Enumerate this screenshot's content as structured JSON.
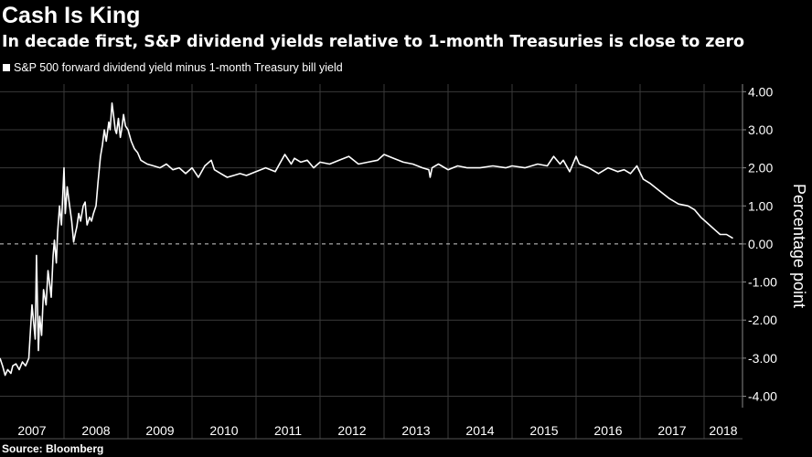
{
  "header": {
    "title": "Cash Is King",
    "subtitle": "In decade first, S&P dividend yields relative to 1-month Treasuries is close to zero"
  },
  "footer": {
    "source": "Source: Bloomberg"
  },
  "colors": {
    "background": "#000000",
    "line": "#ffffff",
    "grid": "#3a3a3a",
    "zero_line": "#cfcfcf"
  },
  "chart_data": {
    "type": "line",
    "title": "Cash Is King",
    "subtitle": "In decade first, S&P dividend yields relative to 1-month Treasuries is close to zero",
    "ylabel": "Percentage point",
    "xlabel": "",
    "ylim": [
      -4.3,
      4.2
    ],
    "yticks": [
      4.0,
      3.0,
      2.0,
      1.0,
      0.0,
      -1.0,
      -2.0,
      -3.0,
      -4.0
    ],
    "ytick_labels": [
      "4.00",
      "3.00",
      "2.00",
      "1.00",
      "0.00",
      "-1.00",
      "-2.00",
      "-3.00",
      "-4.00"
    ],
    "xlim": [
      2007.0,
      2018.6
    ],
    "categories": [
      "2007",
      "2008",
      "2009",
      "2010",
      "2011",
      "2012",
      "2013",
      "2014",
      "2015",
      "2016",
      "2017",
      "2018"
    ],
    "category_x": [
      2007.5,
      2008.5,
      2009.5,
      2010.5,
      2011.5,
      2012.5,
      2013.5,
      2014.5,
      2015.5,
      2016.5,
      2017.5,
      2018.3
    ],
    "x_separators": [
      2008,
      2009,
      2010,
      2011,
      2012,
      2013,
      2014,
      2015,
      2016,
      2017,
      2018
    ],
    "zero_line": 0,
    "legend": [
      "S&P 500 forward dividend yield minus 1-month Treasury bill yield"
    ],
    "series": [
      {
        "name": "S&P 500 forward dividend yield minus 1-month Treasury bill yield",
        "x": [
          2007.0,
          2007.04,
          2007.08,
          2007.12,
          2007.17,
          2007.2,
          2007.25,
          2007.3,
          2007.35,
          2007.4,
          2007.45,
          2007.5,
          2007.55,
          2007.57,
          2007.6,
          2007.62,
          2007.65,
          2007.68,
          2007.72,
          2007.75,
          2007.78,
          2007.8,
          2007.83,
          2007.85,
          2007.88,
          2007.9,
          2007.93,
          2007.96,
          2008.0,
          2008.02,
          2008.05,
          2008.08,
          2008.12,
          2008.15,
          2008.18,
          2008.2,
          2008.23,
          2008.26,
          2008.3,
          2008.33,
          2008.36,
          2008.4,
          2008.43,
          2008.46,
          2008.5,
          2008.53,
          2008.57,
          2008.6,
          2008.63,
          2008.66,
          2008.7,
          2008.72,
          2008.75,
          2008.78,
          2008.8,
          2008.82,
          2008.85,
          2008.88,
          2008.9,
          2008.93,
          2008.96,
          2009.0,
          2009.05,
          2009.1,
          2009.15,
          2009.2,
          2009.3,
          2009.4,
          2009.5,
          2009.6,
          2009.7,
          2009.8,
          2009.9,
          2010.0,
          2010.1,
          2010.2,
          2010.3,
          2010.35,
          2010.45,
          2010.55,
          2010.65,
          2010.75,
          2010.85,
          2011.0,
          2011.15,
          2011.3,
          2011.45,
          2011.55,
          2011.6,
          2011.7,
          2011.8,
          2011.9,
          2012.0,
          2012.15,
          2012.3,
          2012.45,
          2012.6,
          2012.75,
          2012.9,
          2013.0,
          2013.15,
          2013.3,
          2013.45,
          2013.6,
          2013.7,
          2013.72,
          2013.75,
          2013.85,
          2014.0,
          2014.15,
          2014.3,
          2014.5,
          2014.7,
          2014.9,
          2015.0,
          2015.2,
          2015.4,
          2015.55,
          2015.65,
          2015.75,
          2015.8,
          2015.9,
          2016.0,
          2016.05,
          2016.2,
          2016.35,
          2016.5,
          2016.65,
          2016.75,
          2016.85,
          2016.95,
          2017.05,
          2017.15,
          2017.3,
          2017.45,
          2017.6,
          2017.75,
          2017.85,
          2017.95,
          2018.05,
          2018.15,
          2018.25,
          2018.35,
          2018.45
        ],
        "values": [
          -3.0,
          -3.2,
          -3.45,
          -3.3,
          -3.4,
          -3.2,
          -3.15,
          -3.3,
          -3.1,
          -3.2,
          -3.0,
          -1.6,
          -2.5,
          -0.3,
          -2.8,
          -1.9,
          -2.4,
          -1.2,
          -1.6,
          -0.7,
          -1.1,
          -1.4,
          -0.3,
          0.1,
          -0.5,
          0.3,
          1.0,
          0.5,
          2.0,
          0.8,
          1.5,
          1.1,
          0.6,
          0.05,
          0.3,
          0.45,
          0.8,
          0.6,
          1.0,
          1.1,
          0.5,
          0.7,
          0.6,
          0.8,
          1.0,
          1.6,
          2.3,
          2.6,
          3.0,
          2.7,
          3.2,
          3.0,
          3.7,
          3.3,
          3.0,
          2.9,
          3.3,
          2.8,
          3.0,
          3.4,
          3.1,
          3.0,
          2.7,
          2.5,
          2.4,
          2.2,
          2.1,
          2.05,
          2.0,
          2.1,
          1.95,
          2.0,
          1.85,
          2.0,
          1.75,
          2.05,
          2.2,
          1.95,
          1.85,
          1.75,
          1.8,
          1.85,
          1.8,
          1.9,
          2.0,
          1.9,
          2.35,
          2.1,
          2.25,
          2.15,
          2.2,
          2.0,
          2.15,
          2.1,
          2.2,
          2.3,
          2.1,
          2.15,
          2.2,
          2.35,
          2.25,
          2.15,
          2.1,
          2.0,
          1.95,
          1.75,
          2.0,
          2.1,
          1.95,
          2.05,
          2.0,
          2.0,
          2.05,
          2.0,
          2.05,
          2.0,
          2.1,
          2.05,
          2.3,
          2.1,
          2.2,
          1.9,
          2.3,
          2.1,
          2.0,
          1.85,
          2.0,
          1.9,
          1.95,
          1.85,
          2.05,
          1.7,
          1.6,
          1.4,
          1.2,
          1.05,
          1.0,
          0.9,
          0.7,
          0.55,
          0.4,
          0.25,
          0.25,
          0.15
        ]
      }
    ]
  }
}
